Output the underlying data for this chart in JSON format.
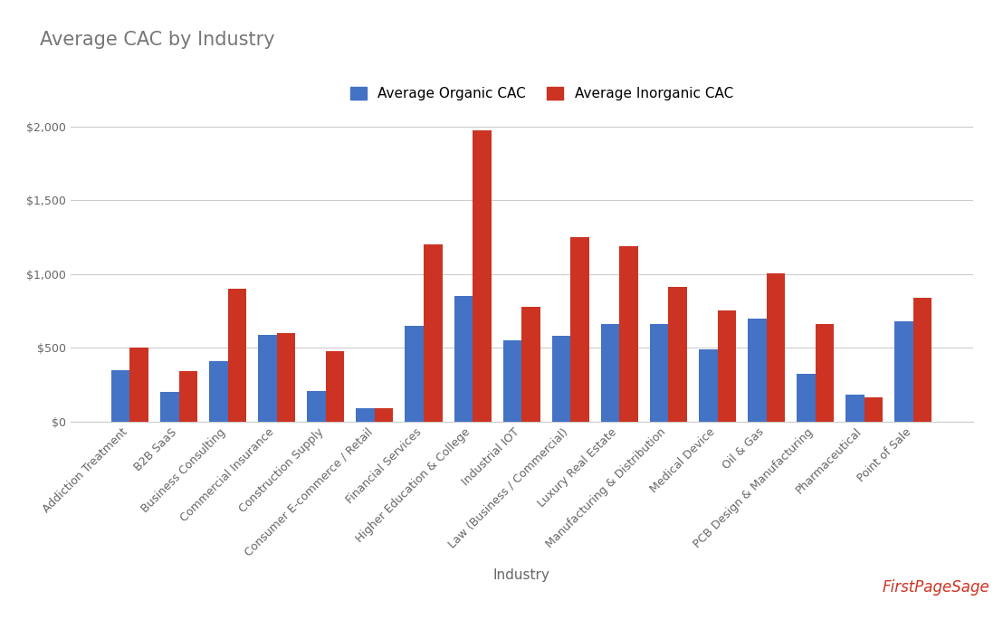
{
  "title": "Average CAC by Industry",
  "xlabel": "Industry",
  "legend_labels": [
    "Average Organic CAC",
    "Average Inorganic CAC"
  ],
  "bar_colors": [
    "#4472C4",
    "#CC3322"
  ],
  "categories": [
    "Addiction Treatment",
    "B2B SaaS",
    "Business Consulting",
    "Commercial Insurance",
    "Construction Supply",
    "Consumer E-commerce / Retail",
    "Financial Services",
    "Higher Education & College",
    "Industrial IOT",
    "Law (Business / Commercial)",
    "Luxury Real Estate",
    "Manufacturing & Distribution",
    "Medical Device",
    "Oil & Gas",
    "PCB Design & Manufacturing",
    "Pharmaceutical",
    "Point of Sale"
  ],
  "organic_cac": [
    350,
    200,
    410,
    585,
    210,
    90,
    650,
    850,
    550,
    580,
    660,
    660,
    490,
    700,
    325,
    185,
    680
  ],
  "inorganic_cac": [
    500,
    340,
    900,
    600,
    480,
    90,
    1200,
    1975,
    780,
    1250,
    1190,
    910,
    755,
    1005,
    660,
    165,
    840
  ],
  "ylim": [
    0,
    2100
  ],
  "yticks": [
    0,
    500,
    1000,
    1500,
    2000
  ],
  "ytick_labels": [
    "$0",
    "$500",
    "$1,000",
    "$1,500",
    "$2,000"
  ],
  "background_color": "#ffffff",
  "grid_color": "#cccccc",
  "title_fontsize": 15,
  "tick_fontsize": 9,
  "legend_fontsize": 11,
  "xlabel_fontsize": 11,
  "bar_width": 0.38,
  "figsize": [
    11.08,
    6.85
  ],
  "dpi": 100
}
